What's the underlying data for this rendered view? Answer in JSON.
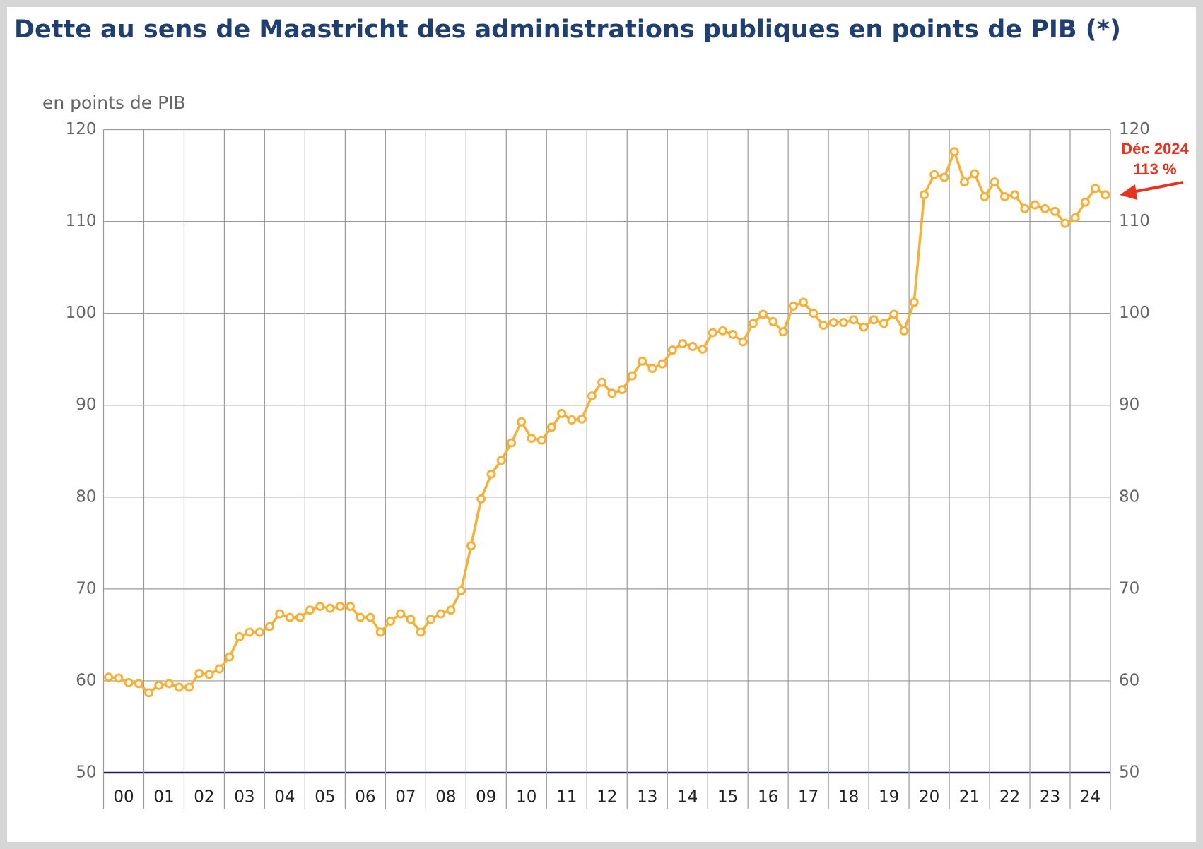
{
  "chart_data": {
    "type": "line",
    "title": "Dette au sens de Maastricht des administrations publiques en points de PIB (*)",
    "y_label": "en points de PIB",
    "categories": [
      "00",
      "01",
      "02",
      "03",
      "04",
      "05",
      "06",
      "07",
      "08",
      "09",
      "10",
      "11",
      "12",
      "13",
      "14",
      "15",
      "16",
      "17",
      "18",
      "19",
      "20",
      "21",
      "22",
      "23",
      "24"
    ],
    "values": [
      [
        60.4,
        60.3,
        59.8,
        59.7
      ],
      [
        58.7,
        59.5,
        59.7,
        59.3
      ],
      [
        59.3,
        60.8,
        60.7,
        61.3
      ],
      [
        62.6,
        64.8,
        65.3,
        65.3
      ],
      [
        65.9,
        67.3,
        66.9,
        66.9
      ],
      [
        67.7,
        68.1,
        67.9,
        68.1
      ],
      [
        68.1,
        66.9,
        66.9,
        65.3
      ],
      [
        66.5,
        67.3,
        66.7,
        65.3
      ],
      [
        66.7,
        67.3,
        67.7,
        69.8
      ],
      [
        74.7,
        79.8,
        82.5,
        84.0
      ],
      [
        85.9,
        88.2,
        86.4,
        86.2
      ],
      [
        87.6,
        89.1,
        88.4,
        88.5
      ],
      [
        91.0,
        92.5,
        91.3,
        91.7
      ],
      [
        93.2,
        94.8,
        94.0,
        94.5
      ],
      [
        96.0,
        96.7,
        96.4,
        96.1
      ],
      [
        97.9,
        98.1,
        97.7,
        96.9
      ],
      [
        98.9,
        99.9,
        99.1,
        98.0
      ],
      [
        100.8,
        101.2,
        100.0,
        98.7
      ],
      [
        99.0,
        99.0,
        99.3,
        98.5
      ],
      [
        99.3,
        98.9,
        99.9,
        98.1
      ],
      [
        101.2,
        112.9,
        115.1,
        114.8
      ],
      [
        117.6,
        114.3,
        115.2,
        112.7
      ],
      [
        114.3,
        112.7,
        112.9,
        111.4
      ],
      [
        111.8,
        111.4,
        111.1,
        109.8
      ],
      [
        110.4,
        112.1,
        113.6,
        112.9
      ]
    ],
    "color": "#f7b035",
    "ylim": [
      50,
      120
    ],
    "yticks": [
      50,
      60,
      70,
      80,
      90,
      100,
      110,
      120
    ],
    "y2lim": [
      50,
      120
    ],
    "y2ticks": [
      50,
      60,
      70,
      80,
      90,
      100,
      110,
      120
    ],
    "grid": true,
    "annotation": [
      "Déc 2024",
      "113 %"
    ]
  }
}
